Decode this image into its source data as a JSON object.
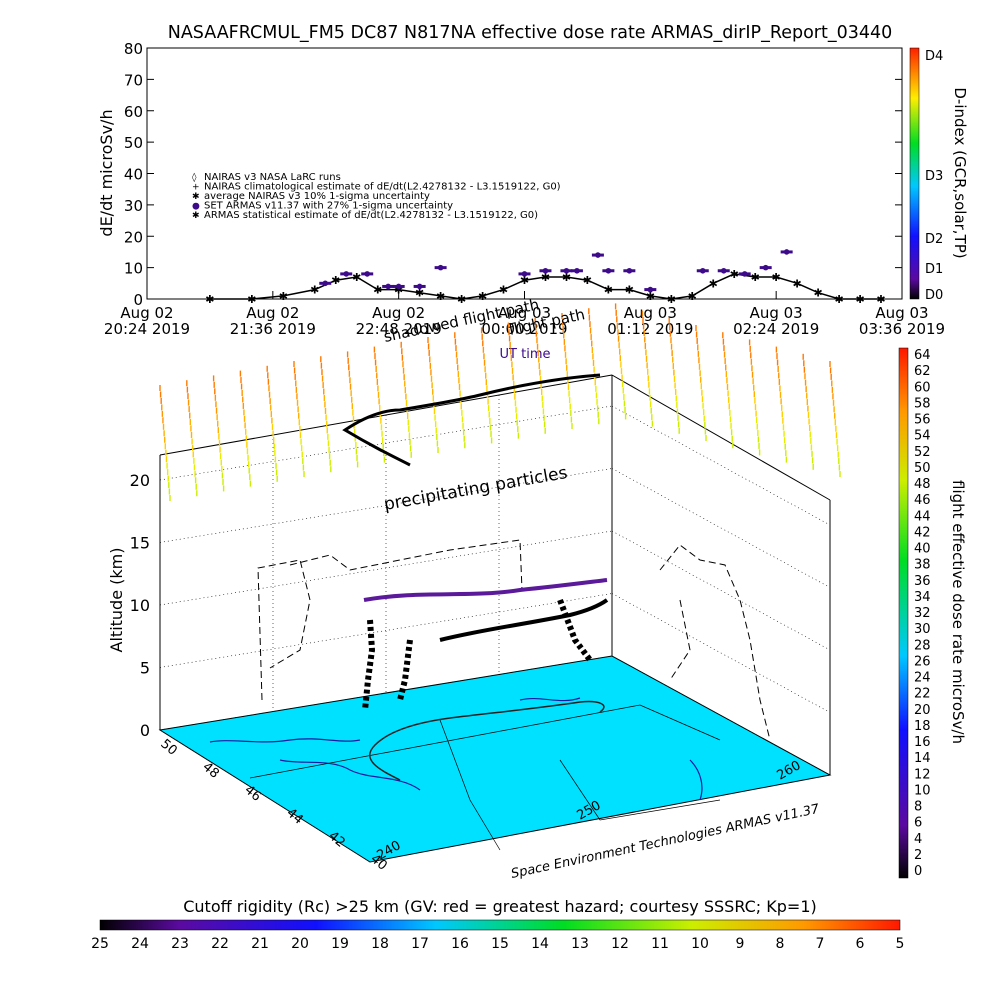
{
  "figure_title": "NASAAFRCMUL_FM5 DC87 N817NA effective dose rate ARMAS_dirIP_Report_03440",
  "chart_data": [
    {
      "type": "scatter",
      "title": "NASAAFRCMUL_FM5 DC87 N817NA effective dose rate ARMAS_dirIP_Report_03440",
      "xlabel": "UT time",
      "ylabel": "dE/dt microSv/h",
      "ylim": [
        0,
        80
      ],
      "yticks": [
        "0",
        "10",
        "20",
        "30",
        "40",
        "50",
        "60",
        "70",
        "80"
      ],
      "xticks": [
        {
          "l1": "Aug 02",
          "l2": "20:24 2019"
        },
        {
          "l1": "Aug 02",
          "l2": "21:36 2019"
        },
        {
          "l1": "Aug 02",
          "l2": "22:48 2019"
        },
        {
          "l1": "Aug 03",
          "l2": "00:00 2019"
        },
        {
          "l1": "Aug 03",
          "l2": "01:12 2019"
        },
        {
          "l1": "Aug 03",
          "l2": "02:24 2019"
        },
        {
          "l1": "Aug 03",
          "l2": "03:36 2019"
        }
      ],
      "legend": [
        "NAIRAS v3 NASA LaRC runs",
        "NAIRAS climatological estimate of dE/dt(L2.4278132 - L3.1519122, G0)",
        "average NAIRAS v3 10% 1-sigma uncertainty",
        "SET ARMAS v11.37 with 27% 1-sigma uncertainty",
        "ARMAS statistical estimate of dE/dt(L2.4278132 - L3.1519122, G0)"
      ],
      "legend_position": "upper-left",
      "right_axis_label": "D-index (GCR,solar,TP)",
      "right_ticks": [
        "D0",
        "D1",
        "D2",
        "D3",
        "D4"
      ],
      "series": [
        {
          "name": "ARMAS statistical estimate of dE/dt(L2.4278132 - L3.1519122, G0)",
          "x_hours": [
            0.6,
            1.0,
            1.3,
            1.6,
            1.8,
            2.0,
            2.2,
            2.4,
            2.6,
            2.8,
            3.0,
            3.2,
            3.4,
            3.6,
            3.8,
            4.0,
            4.2,
            4.4,
            4.6,
            4.8,
            5.0,
            5.2,
            5.4,
            5.6,
            5.8,
            6.0,
            6.2,
            6.4,
            6.6,
            6.8,
            7.0
          ],
          "values": [
            0,
            0,
            1,
            3,
            6,
            7,
            3,
            3,
            2,
            1,
            0,
            1,
            3,
            6,
            7,
            7,
            6,
            3,
            3,
            1,
            0,
            1,
            5,
            8,
            7,
            7,
            5,
            2,
            0,
            0,
            0
          ]
        },
        {
          "name": "SET ARMAS v11.37 with 27% 1-sigma uncertainty",
          "x_hours": [
            1.7,
            1.9,
            2.1,
            2.3,
            2.4,
            2.6,
            2.8,
            3.6,
            3.8,
            4.0,
            4.1,
            4.3,
            4.4,
            4.6,
            4.8,
            5.3,
            5.5,
            5.7,
            5.9,
            6.1
          ],
          "values": [
            5,
            8,
            8,
            4,
            4,
            4,
            10,
            8,
            9,
            9,
            9,
            14,
            9,
            9,
            3,
            9,
            9,
            8,
            10,
            15
          ]
        }
      ]
    },
    {
      "type": "scatter",
      "title": "",
      "zlabel": "Altitude (km)",
      "zlim": [
        0,
        22
      ],
      "zticks": [
        "0",
        "5",
        "10",
        "15",
        "20"
      ],
      "lat_ticks": [
        "50",
        "48",
        "46",
        "44",
        "42",
        "40"
      ],
      "lon_ticks": [
        "240",
        "250",
        "260"
      ],
      "annotations": [
        "precipitating particles",
        "flight path",
        "shadowed flight path"
      ],
      "credit": "Space Environment Technologies ARMAS v11.37",
      "flight_path": [
        {
          "time_h": 0.6,
          "alt_km": 0.3
        },
        {
          "time_h": 1.0,
          "alt_km": 5.0
        },
        {
          "time_h": 1.6,
          "alt_km": 10.0
        },
        {
          "time_h": 2.4,
          "alt_km": 10.4
        },
        {
          "time_h": 3.2,
          "alt_km": 10.8
        },
        {
          "time_h": 4.0,
          "alt_km": 11.0
        },
        {
          "time_h": 5.0,
          "alt_km": 10.6
        },
        {
          "time_h": 5.8,
          "alt_km": 9.5
        },
        {
          "time_h": 6.4,
          "alt_km": 5.0
        },
        {
          "time_h": 7.0,
          "alt_km": 0.3
        }
      ]
    }
  ],
  "colorbars": {
    "dose": {
      "label": "flight effective dose rate microSv/h",
      "ticks": [
        "64",
        "62",
        "60",
        "58",
        "56",
        "54",
        "52",
        "50",
        "48",
        "46",
        "44",
        "42",
        "40",
        "38",
        "36",
        "34",
        "32",
        "30",
        "28",
        "26",
        "24",
        "22",
        "20",
        "18",
        "16",
        "14",
        "12",
        "10",
        "8",
        "6",
        "4",
        "2",
        "0"
      ]
    },
    "cutoff": {
      "label": "Cutoff rigidity (Rc) >25 km (GV: red = greatest hazard; courtesy SSSRC; Kp=1)",
      "ticks": [
        "25",
        "24",
        "23",
        "22",
        "21",
        "20",
        "19",
        "18",
        "17",
        "16",
        "15",
        "14",
        "13",
        "12",
        "11",
        "10",
        "9",
        "8",
        "7",
        "6",
        "5"
      ]
    }
  },
  "colors": {
    "armas": "#3d0a8a",
    "floor": "#00e0ff",
    "stroke": "#000000"
  }
}
